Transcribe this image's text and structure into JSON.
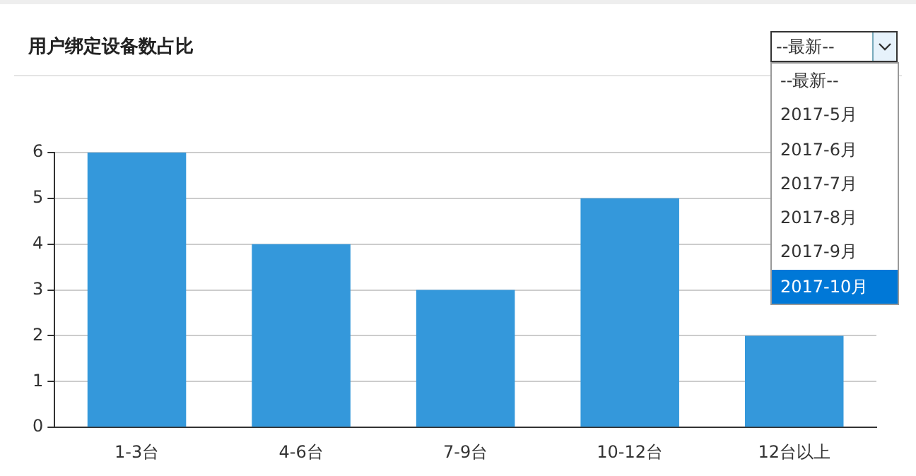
{
  "chart_data": {
    "type": "bar",
    "title": "用户绑定设备数占比",
    "categories": [
      "1-3台",
      "4-6台",
      "7-9台",
      "10-12台",
      "12台以上"
    ],
    "values": [
      6,
      4,
      3,
      5,
      2
    ],
    "color": "#3498db",
    "ylim": [
      0,
      6
    ],
    "yticks": [
      0,
      1,
      2,
      3,
      4,
      5,
      6
    ],
    "grid": "y",
    "annotations": [
      "--最新--",
      "--最新--",
      "2017-5月",
      "2017-6月",
      "2017-7月",
      "2017-8月",
      "2017-9月",
      "2017-10月"
    ]
  }
}
